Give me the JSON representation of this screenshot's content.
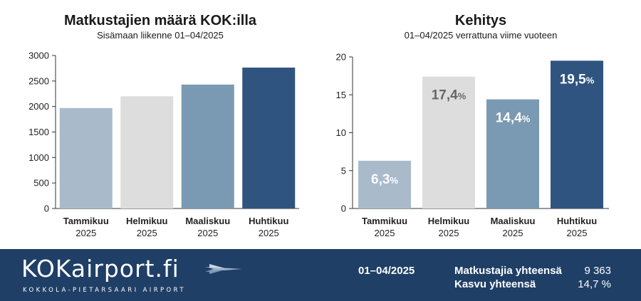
{
  "chart_data": [
    {
      "type": "bar",
      "title": "Matkustajien määrä KOK:illa",
      "subtitle": "Sisämaan liikenne 01–04/2025",
      "categories": [
        "Tammikuu",
        "Helmikuu",
        "Maaliskuu",
        "Huhtikuu"
      ],
      "category_year": "2025",
      "values": [
        1970,
        2200,
        2430,
        2763
      ],
      "ylim": [
        0,
        3000
      ],
      "yticks": [
        0,
        500,
        1000,
        1500,
        2000,
        2500,
        3000
      ],
      "bar_colors": [
        "#a9bacb",
        "#dddddd",
        "#7a9ab3",
        "#2f5480"
      ],
      "grid": false
    },
    {
      "type": "bar",
      "title": "Kehitys",
      "subtitle": "01–04/2025 verrattuna viime vuoteen",
      "categories": [
        "Tammikuu",
        "Helmikuu",
        "Maaliskuu",
        "Huhtikuu"
      ],
      "category_year": "2025",
      "values": [
        6.3,
        17.4,
        14.4,
        19.5
      ],
      "value_labels": [
        "6,3",
        "17,4",
        "14,4",
        "19,5"
      ],
      "value_suffix": "%",
      "ylim": [
        0,
        20
      ],
      "yticks": [
        0,
        5,
        10,
        15,
        20
      ],
      "bar_colors": [
        "#a9bacb",
        "#dddddd",
        "#7a9ab3",
        "#2f5480"
      ],
      "label_colors": [
        "#ffffff",
        "#666666",
        "#ffffff",
        "#ffffff"
      ],
      "grid": false
    }
  ],
  "footer": {
    "logo": "KOKairport.fi",
    "logo_subtitle": "KOKKOLA-PIETARSAARI AIRPORT",
    "period": "01–04/2025",
    "total_passengers_label": "Matkustajia yhteensä",
    "total_passengers_value": "9 363",
    "total_growth_label": "Kasvu yhteensä",
    "total_growth_value": "14,7 %",
    "background_color": "#1f3f66"
  }
}
